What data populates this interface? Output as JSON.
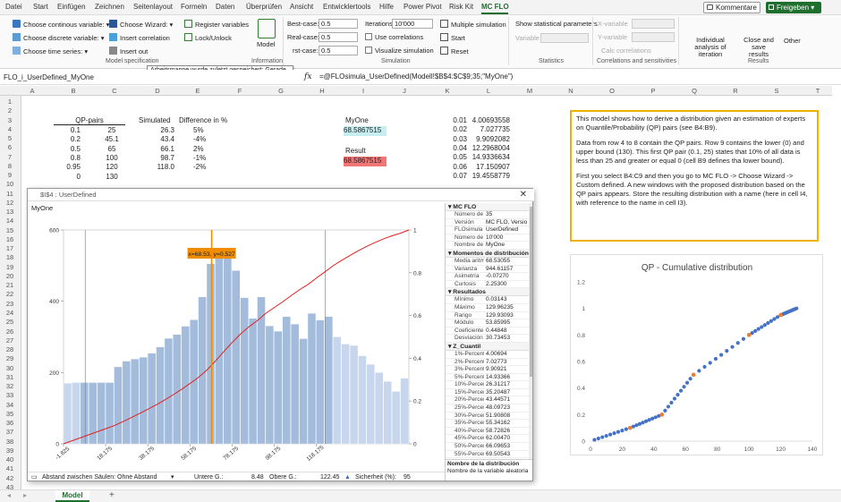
{
  "menu": {
    "items": [
      "Datei",
      "Start",
      "Einfügen",
      "Zeichnen",
      "Seitenlayout",
      "Formeln",
      "Daten",
      "Überprüfen",
      "Ansicht",
      "Entwicklertools",
      "Hilfe",
      "Power Pivot",
      "Risk Kit",
      "MC FLO"
    ],
    "active": "MC FLO",
    "comments_label": "Kommentare",
    "share_label": "Freigeben"
  },
  "ribbon": {
    "model_spec": {
      "choose_continuous": "Choose continous variable:",
      "choose_discrete": "Choose discrete variable:",
      "choose_time_series": "Choose time series:",
      "choose_wizard": "Choose Wizard:",
      "insert_correlation": "Insert correlation",
      "insert_output": "Insert out",
      "register_variables": "Register variables",
      "lock_unlock": "Lock/Unlock",
      "model_button": "Model",
      "group_label": "Model specification",
      "info_group_label": "Information"
    },
    "tooltip": "Arbeitsmappe wurde zuletzt gespeichert: Gerade eben",
    "simulation": {
      "best_case_label": "Best-case:",
      "best_case_value": "0.5",
      "real_case_label": "Real-case:",
      "real_case_value": "0.5",
      "worst_case_label": "rst-case:",
      "worst_case_value": "0.5",
      "iterations_label": "Iterations:",
      "iterations_value": "10'000",
      "use_correlations": "Use correlations",
      "visualize_simulation": "Visualize simulation",
      "multiple_simulation": "Multiple simulation",
      "start": "Start",
      "reset": "Reset",
      "group_label": "Simulation"
    },
    "statistics": {
      "show_parameters": "Show statistical parameters",
      "variable_label": "Variable",
      "group_label": "Statistics"
    },
    "correlations": {
      "x_variable": "X-variable",
      "y_variable": "Y-variable",
      "calc_correlations": "Calc correlations",
      "group_label": "Correlations and sensitivities"
    },
    "results": {
      "individual_analysis": "Individual analysis of iteration",
      "close_save": "Close and save results",
      "other": "Other",
      "group_label": "Results"
    }
  },
  "formula_bar": {
    "name_box": "FLO_i_UserDefined_MyOne",
    "fx": "fx",
    "formula": "=@FLOsimula_UserDefined(Modell!$B$4:$C$9;35;\"MyOne\")"
  },
  "columns": [
    "A",
    "B",
    "C",
    "D",
    "E",
    "F",
    "G",
    "H",
    "I",
    "J",
    "K",
    "L",
    "M",
    "N",
    "O",
    "P",
    "Q",
    "R",
    "S",
    "T",
    "U"
  ],
  "rows": [
    "1",
    "2",
    "3",
    "4",
    "5",
    "6",
    "7",
    "8",
    "9",
    "10",
    "11",
    "12",
    "13",
    "14",
    "15",
    "16",
    "17",
    "18",
    "19",
    "20",
    "21",
    "22",
    "23",
    "24",
    "25",
    "26",
    "27",
    "28",
    "29",
    "30",
    "31",
    "32",
    "33",
    "34",
    "35",
    "36",
    "37",
    "38",
    "39",
    "40",
    "41",
    "42",
    "43"
  ],
  "table": {
    "qp_header": "QP-pairs",
    "simulated_header": "Simulated",
    "diff_header": "Difference in %",
    "rows": [
      {
        "p": "0.1",
        "q": "25",
        "sim": "26.3",
        "diff": "5%"
      },
      {
        "p": "0.2",
        "q": "45.1",
        "sim": "43.4",
        "diff": "-4%"
      },
      {
        "p": "0.5",
        "q": "65",
        "sim": "66.1",
        "diff": "2%"
      },
      {
        "p": "0.8",
        "q": "100",
        "sim": "98.7",
        "diff": "-1%"
      },
      {
        "p": "0.95",
        "q": "120",
        "sim": "118.0",
        "diff": "-2%"
      },
      {
        "p": "0",
        "q": "130",
        "sim": "",
        "diff": ""
      }
    ]
  },
  "myone": {
    "label": "MyOne",
    "value": "68.5867515"
  },
  "result": {
    "label": "Result",
    "value": "68.5867515"
  },
  "col_k_l": [
    {
      "k": "0.01",
      "l": "4.00693558"
    },
    {
      "k": "0.02",
      "l": "7.027735"
    },
    {
      "k": "0.03",
      "l": "9.9092082"
    },
    {
      "k": "0.04",
      "l": "12.2968004"
    },
    {
      "k": "0.05",
      "l": "14.9336634"
    },
    {
      "k": "0.06",
      "l": "17.150907"
    },
    {
      "k": "0.07",
      "l": "19.4558779"
    }
  ],
  "infobox": {
    "p1": "This model shows how to derive a distribution given an estimation of experts on Quantile/Probability (QP) pairs (see B4:B9).",
    "p2": "Data from row 4 to 8 contain the QP pairs. Row 9 contains the lower (0) and upper bound (130). This first QP pair (0.1, 25) states that 10% of all data is less than 25 and greater or equal 0 (cell B9 defines tha lower bound).",
    "p3": "First you select B4:C9 and then you go to MC FLO -> Choose Wizard -> Custom defined. A new windows with the proposed distribution based on the QP pairs appears. Store the resulting distribution with a name (here in cell I4, with reference to the name in cell I3)."
  },
  "minichart": {
    "title": "QP - Cumulative distribution",
    "yticks": [
      "0",
      "0.2",
      "0.4",
      "0.6",
      "0.8",
      "1",
      "1.2"
    ],
    "xticks": [
      "0",
      "20",
      "40",
      "60",
      "80",
      "100",
      "120",
      "140"
    ],
    "xlim": [
      0,
      140
    ],
    "ylim": [
      0,
      1.2
    ],
    "line_color": "#4472c4",
    "point_color": "#ed7d31"
  },
  "window": {
    "title": "$I$4 : UserDefined",
    "subtitle": "MyOne",
    "marker_label": "x=68.53, y=0.527",
    "yticks_left": [
      "0",
      "200",
      "400",
      "600"
    ],
    "yticks_right": [
      "0",
      "0.2",
      "0.4",
      "0.6",
      "0.8",
      "1"
    ],
    "xticks": [
      "-1.825",
      "18.175",
      "38.175",
      "58.175",
      "78.175",
      "98.175",
      "118.175"
    ],
    "bar_color": "#a4bcdc",
    "bar_color_tail": "#c7d6ec",
    "cdf_color": "#e02020",
    "marker_color": "#f08c00",
    "status": {
      "gap_label": "Abstand zwischen Säulen:",
      "gap_value": "Ohne Abstand",
      "lower_label": "Untere G.:",
      "lower_value": "8.48",
      "upper_label": "Obere G.:",
      "upper_value": "122.45",
      "confidence_label": "Sicherheit (%):",
      "confidence_value": "95"
    },
    "panel": {
      "sections": [
        {
          "title": "MC FLO",
          "rows": [
            {
              "k": "Número de c",
              "v": "35"
            },
            {
              "k": "Versión",
              "v": "MC FLO, Versio"
            },
            {
              "k": "FLOsimula",
              "v": "UserDefined"
            },
            {
              "k": "Número de il",
              "v": "10'000"
            },
            {
              "k": "Nombre de la",
              "v": "MyOne"
            }
          ]
        },
        {
          "title": "Momentos de distribución",
          "rows": [
            {
              "k": "Media aritmé",
              "v": "68.53055"
            },
            {
              "k": "Varianza",
              "v": "944.61157"
            },
            {
              "k": "Asimetría",
              "v": "-0.07270"
            },
            {
              "k": "Curtosis",
              "v": "2.25300"
            }
          ]
        },
        {
          "title": "Resultados",
          "rows": [
            {
              "k": "Mínimo",
              "v": "0.03143"
            },
            {
              "k": "Máximo",
              "v": "129.96235"
            },
            {
              "k": "Rango",
              "v": "129.93093"
            },
            {
              "k": "Módulo",
              "v": "53.85995"
            },
            {
              "k": "Coeficiente c",
              "v": "0.44848"
            },
            {
              "k": "Desviación e",
              "v": "30.73453"
            }
          ]
        },
        {
          "title": "Z_Cuantil",
          "rows": [
            {
              "k": "1%-Percenti",
              "v": "4.00694"
            },
            {
              "k": "2%-Percenti",
              "v": "7.02773"
            },
            {
              "k": "3%-Percenti",
              "v": "9.90921"
            },
            {
              "k": "5%-Percenti",
              "v": "14.93366"
            },
            {
              "k": "10%-Percent",
              "v": "26.31217"
            },
            {
              "k": "15%-Percent",
              "v": "35.20487"
            },
            {
              "k": "20%-Percent",
              "v": "43.44571"
            },
            {
              "k": "25%-Percent",
              "v": "48.09723"
            },
            {
              "k": "30%-Percent",
              "v": "51.90808"
            },
            {
              "k": "35%-Percent",
              "v": "55.34162"
            },
            {
              "k": "40%-Percent",
              "v": "58.72826"
            },
            {
              "k": "45%-Percent",
              "v": "62.00470"
            },
            {
              "k": "50%-Percent",
              "v": "66.09653"
            },
            {
              "k": "55%-Percent",
              "v": "69.50543"
            }
          ]
        }
      ],
      "desc_title": "Nombre de la distribución",
      "desc_text": "Nombre de la variable aleatoria"
    }
  },
  "sheet_tab": "Model",
  "add_sheet": "+",
  "chart_data": [
    {
      "type": "bar",
      "title": "",
      "bin_start": -1.825,
      "bin_width": 4,
      "values": [
        170,
        172,
        172,
        172,
        172,
        172,
        216,
        232,
        238,
        243,
        254,
        272,
        296,
        307,
        330,
        348,
        412,
        505,
        537,
        522,
        486,
        410,
        352,
        412,
        331,
        316,
        357,
        336,
        295,
        366,
        347,
        357,
        300,
        280,
        276,
        247,
        223,
        200,
        175,
        147,
        184
      ],
      "cdf_line": true,
      "marker_x": 68.53,
      "marker_y": 0.527,
      "lower_line": 8.48,
      "upper_line": 122.45,
      "ylim": [
        0,
        600
      ],
      "y2lim": [
        0,
        1
      ]
    },
    {
      "type": "scatter",
      "title": "QP - Cumulative distribution",
      "points": [
        [
          0,
          0
        ],
        [
          25,
          0.1
        ],
        [
          45.1,
          0.2
        ],
        [
          65,
          0.5
        ],
        [
          100,
          0.8
        ],
        [
          120,
          0.95
        ],
        [
          130,
          1
        ]
      ],
      "xlim": [
        0,
        140
      ],
      "ylim": [
        0,
        1.2
      ]
    }
  ]
}
